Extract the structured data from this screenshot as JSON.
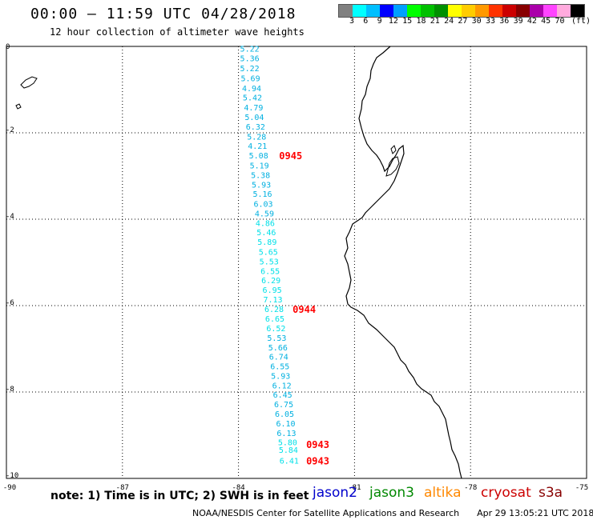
{
  "header": {
    "title": "00:00 – 11:59 UTC 04/28/2018",
    "subtitle": "12 hour collection of altimeter wave heights"
  },
  "colorbar": {
    "colors": [
      "#808080",
      "#00ffff",
      "#00bfff",
      "#0000ff",
      "#00a0ff",
      "#00ff00",
      "#00c000",
      "#009000",
      "#ffff00",
      "#ffcc00",
      "#ff9900",
      "#ff3300",
      "#cc0000",
      "#880000",
      "#aa00aa",
      "#ff44ff",
      "#ffaadd",
      "#000000"
    ],
    "labels": [
      "3",
      "6",
      "9",
      "12",
      "15",
      "18",
      "21",
      "24",
      "27",
      "30",
      "33",
      "36",
      "39",
      "42",
      "45",
      "70"
    ],
    "unit": "(ft)"
  },
  "map": {
    "x_ticks": [
      "-90",
      "-87",
      "-84",
      "-81",
      "-78",
      "-75"
    ],
    "y_ticks": [
      "0",
      "-2",
      "-4",
      "-6",
      "-8",
      "-10"
    ],
    "lon_range": [
      -90,
      -75
    ],
    "lat_range": [
      -10,
      0
    ],
    "wave_color_light": "#00e0e8",
    "wave_color_mid": "#00b0e0",
    "time_color": "#ff0000",
    "track": [
      {
        "lon": -84.0,
        "lat": -0.05,
        "swh": "5.22"
      },
      {
        "lon": -84.0,
        "lat": -0.27,
        "swh": "5.36"
      },
      {
        "lon": -84.0,
        "lat": -0.5,
        "swh": "5.22"
      },
      {
        "lon": -83.98,
        "lat": -0.73,
        "swh": "5.69"
      },
      {
        "lon": -83.95,
        "lat": -0.96,
        "swh": "4.94"
      },
      {
        "lon": -83.93,
        "lat": -1.18,
        "swh": "5.42"
      },
      {
        "lon": -83.9,
        "lat": -1.41,
        "swh": "4.79"
      },
      {
        "lon": -83.88,
        "lat": -1.63,
        "swh": "5.04"
      },
      {
        "lon": -83.85,
        "lat": -1.85,
        "swh": "6.32"
      },
      {
        "lon": -83.82,
        "lat": -2.08,
        "swh": "5.28"
      },
      {
        "lon": -83.8,
        "lat": -2.3,
        "swh": "4.21"
      },
      {
        "lon": -83.77,
        "lat": -2.52,
        "swh": "5.08"
      },
      {
        "lon": -83.75,
        "lat": -2.75,
        "swh": "5.19"
      },
      {
        "lon": -83.72,
        "lat": -2.97,
        "swh": "5.38"
      },
      {
        "lon": -83.7,
        "lat": -3.19,
        "swh": "5.93"
      },
      {
        "lon": -83.67,
        "lat": -3.41,
        "swh": "5.16"
      },
      {
        "lon": -83.65,
        "lat": -3.64,
        "swh": "6.03"
      },
      {
        "lon": -83.62,
        "lat": -3.86,
        "swh": "4.59"
      },
      {
        "lon": -83.6,
        "lat": -4.08,
        "swh": "4.86"
      },
      {
        "lon": -83.57,
        "lat": -4.3,
        "swh": "5.46"
      },
      {
        "lon": -83.55,
        "lat": -4.52,
        "swh": "5.89"
      },
      {
        "lon": -83.52,
        "lat": -4.75,
        "swh": "5.65"
      },
      {
        "lon": -83.5,
        "lat": -4.97,
        "swh": "5.53"
      },
      {
        "lon": -83.47,
        "lat": -5.19,
        "swh": "6.55"
      },
      {
        "lon": -83.45,
        "lat": -5.41,
        "swh": "6.29"
      },
      {
        "lon": -83.42,
        "lat": -5.63,
        "swh": "6.95"
      },
      {
        "lon": -83.4,
        "lat": -5.85,
        "swh": "7.13"
      },
      {
        "lon": -83.37,
        "lat": -6.07,
        "swh": "6.28"
      },
      {
        "lon": -83.35,
        "lat": -6.3,
        "swh": "6.65"
      },
      {
        "lon": -83.32,
        "lat": -6.52,
        "swh": "6.52"
      },
      {
        "lon": -83.3,
        "lat": -6.74,
        "swh": "5.53"
      },
      {
        "lon": -83.27,
        "lat": -6.96,
        "swh": "5.66"
      },
      {
        "lon": -83.25,
        "lat": -7.18,
        "swh": "6.74"
      },
      {
        "lon": -83.22,
        "lat": -7.4,
        "swh": "6.55"
      },
      {
        "lon": -83.2,
        "lat": -7.62,
        "swh": "5.93"
      },
      {
        "lon": -83.17,
        "lat": -7.84,
        "swh": "6.12"
      },
      {
        "lon": -83.15,
        "lat": -8.06,
        "swh": "6.45"
      },
      {
        "lon": -83.12,
        "lat": -8.28,
        "swh": "6.75"
      },
      {
        "lon": -83.1,
        "lat": -8.5,
        "swh": "6.05"
      },
      {
        "lon": -83.07,
        "lat": -8.72,
        "swh": "6.10"
      },
      {
        "lon": -83.05,
        "lat": -8.94,
        "swh": "6.13"
      },
      {
        "lon": -83.02,
        "lat": -9.16,
        "swh": "5.80"
      },
      {
        "lon": -83.0,
        "lat": -9.33,
        "swh": "5.84"
      },
      {
        "lon": -82.98,
        "lat": -9.58,
        "swh": "6.41"
      }
    ],
    "times": [
      {
        "lon": -82.95,
        "lat": -2.52,
        "text": "0945"
      },
      {
        "lon": -82.6,
        "lat": -6.07,
        "text": "0944"
      },
      {
        "lon": -82.25,
        "lat": -9.2,
        "text": "0943"
      },
      {
        "lon": -82.25,
        "lat": -9.58,
        "text": "0943"
      }
    ]
  },
  "note": "note: 1) Time is in UTC; 2) SWH is in feet",
  "satellites": [
    {
      "name": "jason2",
      "color": "#0000cc"
    },
    {
      "name": "jason3",
      "color": "#008800"
    },
    {
      "name": "altika",
      "color": "#ff8800"
    },
    {
      "name": "cryosat",
      "color": "#cc0000"
    },
    {
      "name": "s3a",
      "color": "#880000"
    }
  ],
  "footer": {
    "credit": "NOAA/NESDIS Center for Satellite Applications and Research",
    "timestamp": "Apr 29 13:05:21 UTC 2018"
  }
}
